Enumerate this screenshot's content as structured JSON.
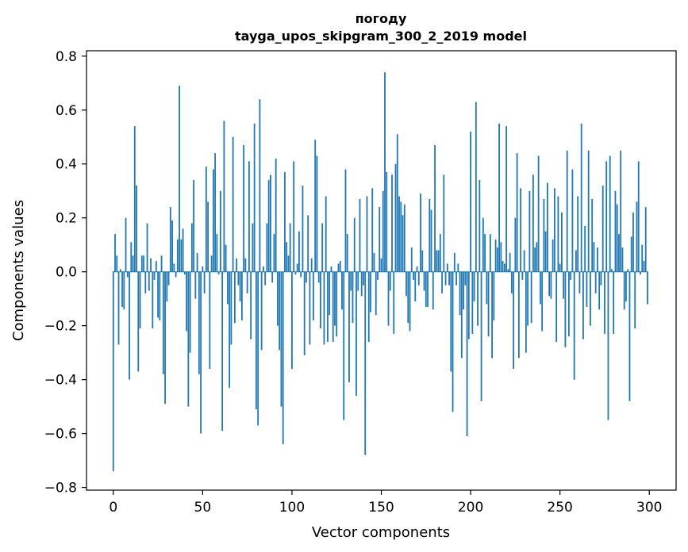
{
  "chart_data": {
    "type": "bar",
    "title_line1": "погоду",
    "title_line2": "tayga_upos_skipgram_300_2_2019 model",
    "xlabel": "Vector components",
    "ylabel": "Components values",
    "xlim": [
      -15,
      315
    ],
    "ylim": [
      -0.81,
      0.82
    ],
    "xticks": [
      0,
      50,
      100,
      150,
      200,
      250,
      300
    ],
    "xtick_labels": [
      "0",
      "50",
      "100",
      "150",
      "200",
      "250",
      "300"
    ],
    "yticks": [
      -0.8,
      -0.6,
      -0.4,
      -0.2,
      0.0,
      0.2,
      0.4,
      0.6,
      0.8
    ],
    "ytick_labels": [
      "−0.8",
      "−0.6",
      "−0.4",
      "−0.2",
      "0.0",
      "0.2",
      "0.4",
      "0.6",
      "0.8"
    ],
    "bar_color": "#1f77b4",
    "values": [
      -0.74,
      0.14,
      0.06,
      -0.27,
      0.01,
      -0.13,
      -0.14,
      0.2,
      -0.02,
      -0.4,
      0.11,
      0.06,
      0.54,
      0.32,
      -0.37,
      -0.21,
      0.06,
      0.06,
      -0.08,
      0.18,
      -0.07,
      0.05,
      -0.21,
      -0.03,
      0.04,
      -0.17,
      -0.18,
      0.06,
      -0.38,
      -0.49,
      -0.11,
      -0.05,
      0.24,
      0.19,
      0.03,
      -0.02,
      0.12,
      0.69,
      0.12,
      0.16,
      -0.01,
      -0.22,
      -0.5,
      -0.3,
      0.18,
      0.34,
      -0.1,
      0.07,
      -0.38,
      -0.6,
      0.02,
      -0.08,
      0.39,
      0.26,
      -0.36,
      0.06,
      0.38,
      0.44,
      0.14,
      -0.01,
      0.3,
      -0.59,
      0.56,
      0.1,
      -0.12,
      -0.43,
      -0.27,
      0.5,
      -0.19,
      0.05,
      -0.05,
      -0.11,
      -0.18,
      0.47,
      0.05,
      -0.08,
      0.41,
      -0.25,
      0.18,
      0.55,
      -0.51,
      -0.57,
      0.64,
      -0.29,
      0.02,
      -0.05,
      0.18,
      0.34,
      0.36,
      -0.04,
      0.14,
      0.42,
      -0.2,
      -0.29,
      -0.5,
      -0.64,
      0.37,
      0.11,
      0.06,
      0.18,
      -0.36,
      0.41,
      -0.01,
      0.03,
      0.15,
      -0.02,
      0.32,
      -0.31,
      -0.04,
      0.21,
      -0.27,
      0.05,
      -0.18,
      0.49,
      0.43,
      -0.04,
      -0.21,
      0.18,
      -0.27,
      0.28,
      -0.26,
      -0.16,
      0.02,
      -0.26,
      -0.2,
      -0.24,
      0.03,
      0.04,
      -0.14,
      -0.55,
      0.38,
      0.14,
      -0.41,
      -0.07,
      -0.19,
      0.2,
      -0.46,
      -0.07,
      0.27,
      -0.09,
      -0.05,
      -0.68,
      0.28,
      -0.26,
      -0.15,
      0.31,
      0.07,
      -0.16,
      -0.03,
      0.24,
      0.05,
      0.3,
      0.74,
      0.37,
      -0.2,
      -0.07,
      0.36,
      -0.23,
      0.4,
      0.51,
      0.28,
      0.26,
      0.21,
      0.25,
      -0.09,
      -0.19,
      -0.22,
      0.09,
      -0.03,
      -0.11,
      0.02,
      -0.05,
      0.29,
      0.08,
      -0.07,
      -0.13,
      -0.13,
      0.27,
      0.23,
      -0.14,
      0.47,
      0.08,
      0.08,
      0.14,
      -0.08,
      0.36,
      -0.05,
      0.03,
      -0.05,
      -0.37,
      -0.52,
      0.07,
      -0.05,
      0.03,
      -0.16,
      -0.32,
      -0.14,
      -0.05,
      -0.61,
      -0.25,
      0.52,
      -0.23,
      -0.11,
      0.63,
      -0.2,
      0.34,
      -0.48,
      0.2,
      0.14,
      -0.12,
      -0.24,
      0.14,
      -0.32,
      -0.18,
      0.12,
      0.09,
      0.55,
      0.11,
      0.04,
      0.03,
      0.54,
      0.01,
      0.07,
      -0.08,
      -0.36,
      0.2,
      0.44,
      -0.32,
      0.31,
      -0.03,
      0.08,
      -0.3,
      -0.2,
      0.3,
      -0.19,
      0.36,
      0.09,
      0.11,
      0.43,
      -0.12,
      -0.22,
      0.27,
      0.15,
      0.33,
      -0.09,
      -0.1,
      0.12,
      0.31,
      -0.26,
      0.28,
      0.03,
      0.22,
      -0.1,
      -0.28,
      0.45,
      -0.24,
      -0.03,
      0.38,
      -0.4,
      0.08,
      0.28,
      -0.08,
      0.55,
      -0.25,
      0.17,
      -0.13,
      0.45,
      -0.2,
      0.27,
      0.11,
      -0.08,
      0.09,
      -0.14,
      -0.05,
      0.32,
      -0.23,
      0.41,
      -0.55,
      0.43,
      0.01,
      -0.23,
      0.3,
      0.25,
      0.14,
      0.45,
      0.09,
      -0.14,
      -0.11,
      0.01,
      -0.48,
      0.13,
      0.22,
      -0.21,
      0.26,
      0.41,
      -0.01,
      0.1,
      0.04,
      0.24,
      -0.12
    ]
  }
}
